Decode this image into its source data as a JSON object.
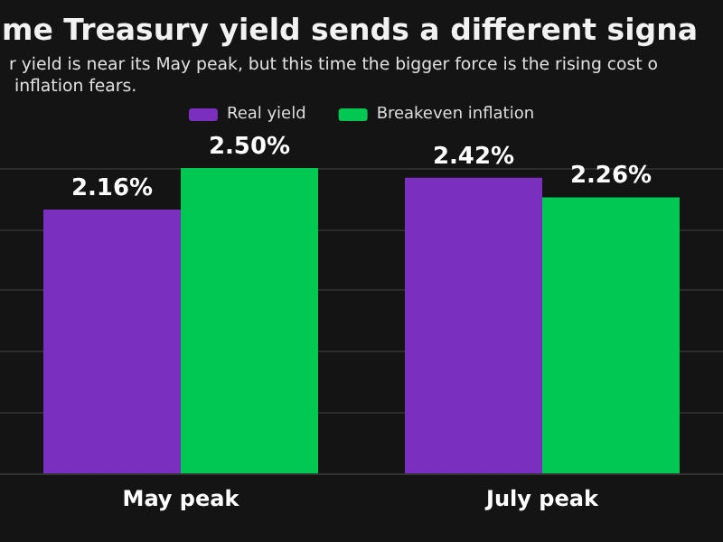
{
  "chart_data": {
    "type": "bar",
    "title": "me Treasury yield sends a different signa",
    "subtitle": "r yield is near its May peak, but this time the bigger force is the rising cost o\n inflation fears.",
    "categories": [
      "May peak",
      "July peak"
    ],
    "series": [
      {
        "name": "Real yield",
        "color": "#7b2fbe",
        "values": [
          2.16,
          2.42
        ],
        "value_labels": [
          "2.16%",
          "2.42%"
        ]
      },
      {
        "name": "Breakeven inflation",
        "color": "#00c853",
        "values": [
          2.5,
          2.26
        ],
        "value_labels": [
          "2.50%",
          "2.26%"
        ]
      }
    ],
    "tick_labels": "x",
    "grid": "y",
    "legend": "top"
  }
}
